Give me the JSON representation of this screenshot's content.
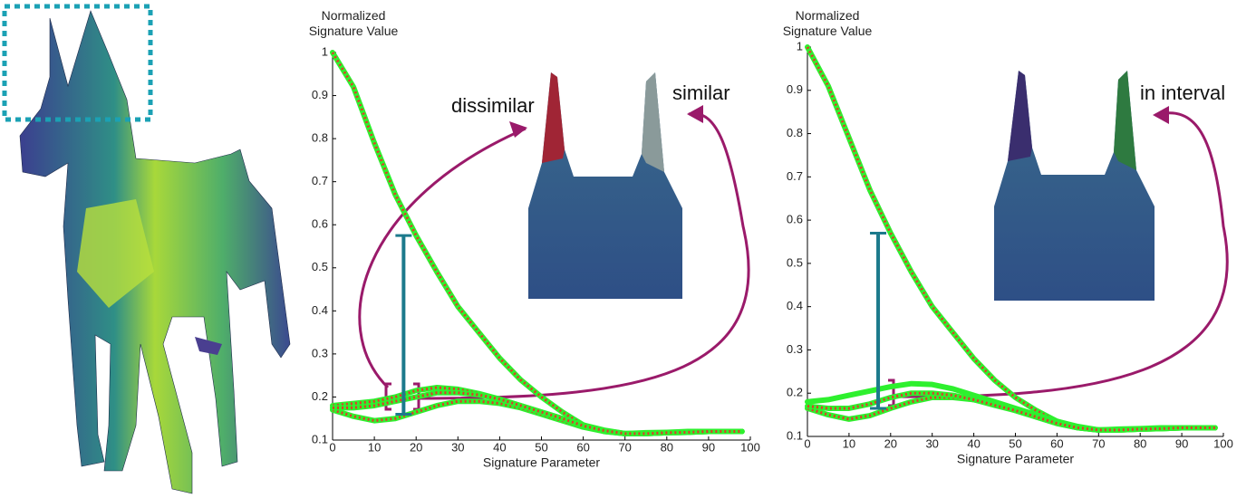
{
  "chart_data": [
    {
      "type": "line",
      "y_label": "Normalized Signature Value",
      "x_label": "Signature Parameter",
      "xlim": [
        0,
        100
      ],
      "ylim": [
        0.1,
        1
      ],
      "xticks": [
        0,
        10,
        20,
        30,
        40,
        50,
        60,
        70,
        80,
        90,
        100
      ],
      "yticks": [
        0.1,
        0.2,
        0.3,
        0.4,
        0.5,
        0.6,
        0.7,
        0.8,
        0.9,
        1
      ],
      "grid": false,
      "annotations": [
        "dissimilar",
        "similar"
      ],
      "interval": {
        "x": 17,
        "low": 0.16,
        "high": 0.575,
        "color": "#1c7a8c"
      },
      "x": [
        0,
        5,
        10,
        15,
        20,
        25,
        30,
        35,
        40,
        45,
        50,
        55,
        60,
        65,
        70,
        75,
        80,
        85,
        90,
        95,
        98
      ],
      "series": [
        {
          "color": "#2ef02e",
          "dash_color": "#e03a2a",
          "values": [
            1,
            0.92,
            0.79,
            0.67,
            0.575,
            0.49,
            0.41,
            0.35,
            0.29,
            0.24,
            0.2,
            0.165,
            0.135,
            0.12,
            0.115,
            0.117,
            0.118,
            0.12,
            0.12,
            0.12,
            0.12
          ]
        },
        {
          "color": "#2ef02e",
          "dash_color": "#e03a2a",
          "values": [
            0.18,
            0.185,
            0.19,
            0.2,
            0.215,
            0.222,
            0.218,
            0.208,
            0.195,
            0.18,
            0.165,
            0.15,
            0.135,
            0.123,
            0.115,
            0.115,
            0.117,
            0.118,
            0.12,
            0.12,
            0.12
          ]
        },
        {
          "color": "#2ef02e",
          "dash_color": "#e03a2a",
          "values": [
            0.17,
            0.155,
            0.145,
            0.15,
            0.165,
            0.18,
            0.19,
            0.19,
            0.185,
            0.175,
            0.16,
            0.145,
            0.13,
            0.12,
            0.115,
            0.115,
            0.117,
            0.118,
            0.12,
            0.12,
            0.12
          ]
        },
        {
          "color": "#2ef02e",
          "dash_color": "#e03a2a",
          "values": [
            0.175,
            0.175,
            0.18,
            0.19,
            0.2,
            0.21,
            0.21,
            0.205,
            0.195,
            0.18,
            0.165,
            0.15,
            0.133,
            0.122,
            0.115,
            0.115,
            0.117,
            0.118,
            0.12,
            0.12,
            0.12
          ]
        }
      ]
    },
    {
      "type": "line",
      "y_label": "Normalized Signature Value",
      "x_label": "Signature Parameter",
      "xlim": [
        0,
        100
      ],
      "ylim": [
        0.1,
        1
      ],
      "xticks": [
        0,
        10,
        20,
        30,
        40,
        50,
        60,
        70,
        80,
        90,
        100
      ],
      "yticks": [
        0.1,
        0.2,
        0.3,
        0.4,
        0.5,
        0.6,
        0.7,
        0.8,
        0.9,
        1
      ],
      "grid": false,
      "annotations": [
        "in interval"
      ],
      "interval": {
        "x": 17,
        "low": 0.165,
        "high": 0.57,
        "color": "#1c7a8c"
      },
      "x": [
        0,
        5,
        10,
        15,
        20,
        25,
        30,
        35,
        40,
        45,
        50,
        55,
        60,
        65,
        70,
        75,
        80,
        85,
        90,
        95,
        98
      ],
      "series": [
        {
          "color": "#2ef02e",
          "dash_color": "#e03a2a",
          "values": [
            1,
            0.91,
            0.79,
            0.67,
            0.57,
            0.48,
            0.4,
            0.34,
            0.28,
            0.23,
            0.19,
            0.16,
            0.135,
            0.12,
            0.115,
            0.117,
            0.118,
            0.12,
            0.12,
            0.12,
            0.12
          ]
        },
        {
          "color": "#2ef02e",
          "values": [
            0.18,
            0.185,
            0.195,
            0.205,
            0.215,
            0.222,
            0.22,
            0.21,
            0.195,
            0.18,
            0.165,
            0.15,
            0.135,
            0.123,
            0.115,
            0.115,
            0.117,
            0.118,
            0.12,
            0.12,
            0.12
          ]
        },
        {
          "color": "#2ef02e",
          "dash_color": "#e03a2a",
          "values": [
            0.165,
            0.15,
            0.14,
            0.148,
            0.165,
            0.18,
            0.19,
            0.19,
            0.185,
            0.175,
            0.16,
            0.145,
            0.13,
            0.12,
            0.115,
            0.115,
            0.117,
            0.118,
            0.12,
            0.12,
            0.12
          ]
        },
        {
          "color": "#2ef02e",
          "dash_color": "#e03a2a",
          "values": [
            0.17,
            0.165,
            0.165,
            0.175,
            0.19,
            0.2,
            0.2,
            0.195,
            0.185,
            0.172,
            0.16,
            0.145,
            0.13,
            0.12,
            0.115,
            0.115,
            0.117,
            0.118,
            0.12,
            0.12,
            0.12
          ]
        }
      ]
    }
  ]
}
